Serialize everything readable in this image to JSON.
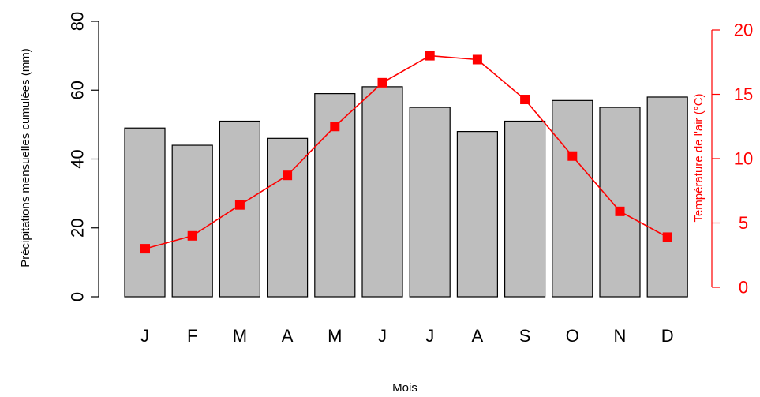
{
  "chart_data": {
    "type": "bar",
    "categories": [
      "J",
      "F",
      "M",
      "A",
      "M",
      "J",
      "J",
      "A",
      "S",
      "O",
      "N",
      "D"
    ],
    "xlabel": "Mois",
    "series": [
      {
        "type": "bar",
        "axis": "left",
        "values": [
          49,
          44,
          51,
          46,
          59,
          61,
          55,
          48,
          51,
          57,
          55,
          58
        ],
        "color": "#bebebe"
      },
      {
        "type": "line",
        "axis": "right",
        "values": [
          3.0,
          4.0,
          6.4,
          8.7,
          12.5,
          15.9,
          18.0,
          17.7,
          14.6,
          10.2,
          5.9,
          3.9
        ],
        "color": "#ff0000"
      }
    ],
    "y_left": {
      "label": "Précipitations mensuelles cumulées (mm)",
      "ticks": [
        "0",
        "20",
        "40",
        "60",
        "80"
      ],
      "range": [
        0,
        80
      ]
    },
    "y_right": {
      "label": "Température de l'air (°C)",
      "ticks": [
        "0",
        "5",
        "10",
        "15",
        "20"
      ],
      "range": [
        0,
        20
      ]
    },
    "grid": false,
    "legend": "none"
  }
}
